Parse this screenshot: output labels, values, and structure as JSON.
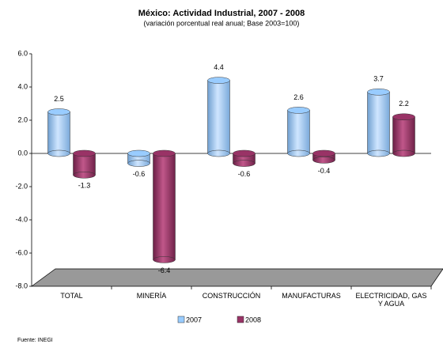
{
  "chart_data": {
    "type": "bar",
    "title": "México: Actividad Industrial, 2007 - 2008",
    "subtitle": "(variación porcentual real anual; Base 2003=100)",
    "source": "Fuente: INEGI",
    "categories": [
      "TOTAL",
      "MINERÍA",
      "CONSTRUCCIÓN",
      "MANUFACTURAS",
      "ELECTRICIDAD, GAS Y AGUA"
    ],
    "series": [
      {
        "name": "2007",
        "color": "#99ccff",
        "values": [
          2.5,
          -0.6,
          4.4,
          2.6,
          3.7
        ]
      },
      {
        "name": "2008",
        "color": "#993366",
        "values": [
          -1.3,
          -6.4,
          -0.6,
          -0.4,
          2.2
        ]
      }
    ],
    "ylim": [
      -8,
      6
    ],
    "yticks": [
      {
        "value": -8,
        "label": "-8.0"
      },
      {
        "value": -6,
        "label": "-6.0"
      },
      {
        "value": -4,
        "label": "-4.0"
      },
      {
        "value": -2,
        "label": "-2.0"
      },
      {
        "value": 0,
        "label": "0.0"
      },
      {
        "value": 2,
        "label": "2.0"
      },
      {
        "value": 4,
        "label": "4.0"
      },
      {
        "value": 6,
        "label": "6.0"
      }
    ]
  }
}
